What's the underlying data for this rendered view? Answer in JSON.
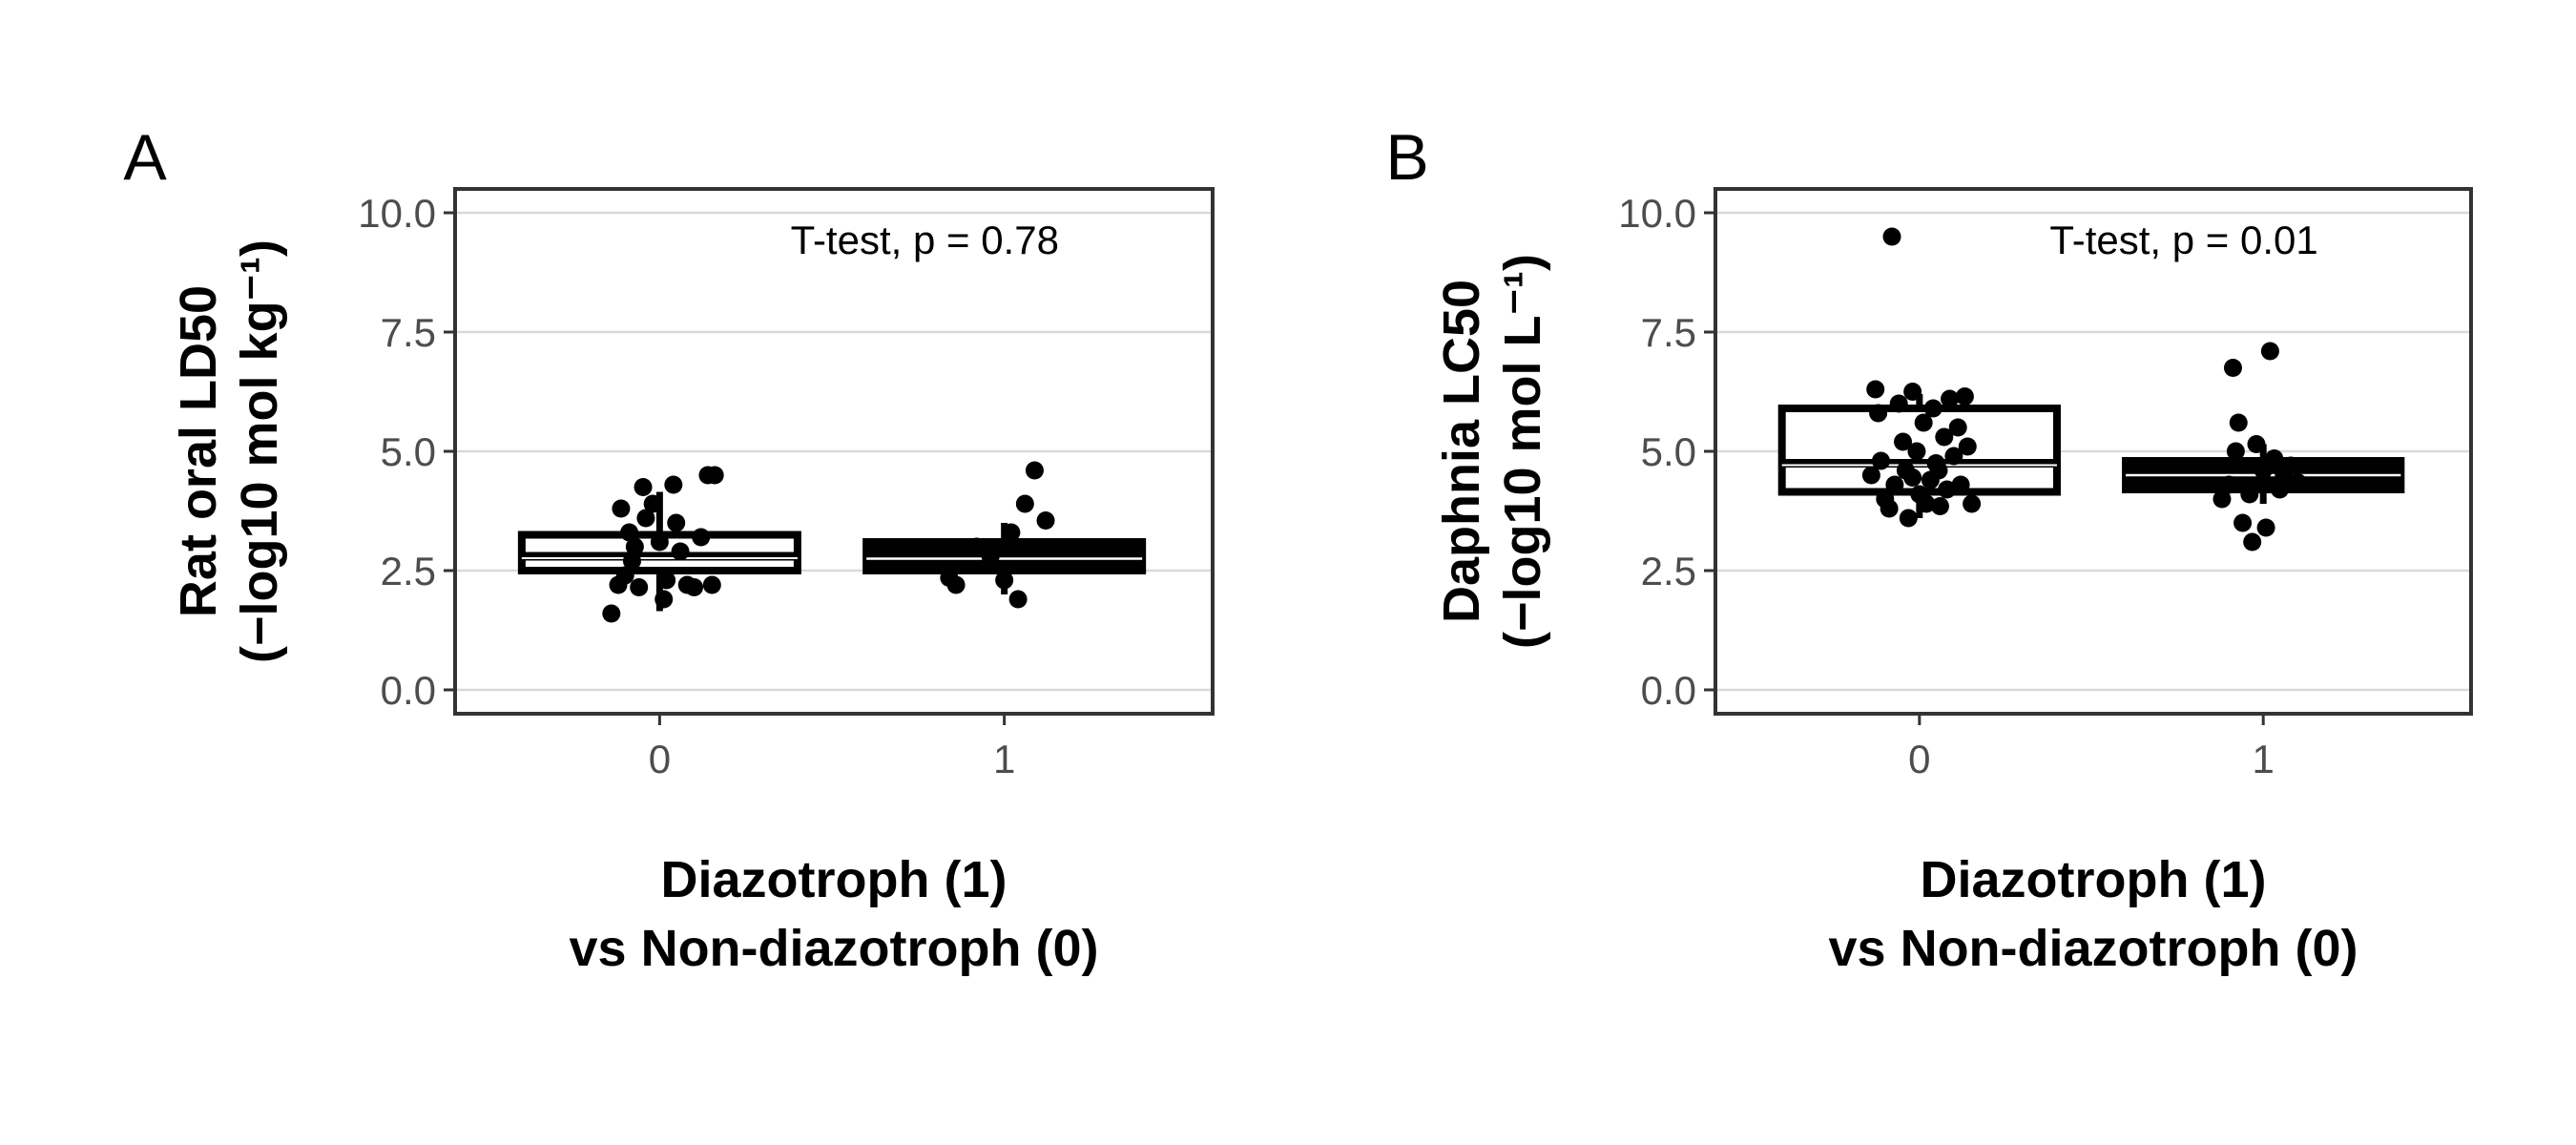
{
  "chart_data": [
    {
      "type": "box",
      "panel_label": "A",
      "ylabel_lines": [
        "Rat oral LD50",
        "(−log10 mol kg⁻¹)"
      ],
      "xlabel_lines": [
        "Diazotroph (1)",
        "vs Non-diazotroph (0)"
      ],
      "categories": [
        "0",
        "1"
      ],
      "ylim": [
        -0.5,
        10.5
      ],
      "yticks": [
        0.0,
        2.5,
        5.0,
        7.5,
        10.0
      ],
      "ytick_labels": [
        "0.0",
        "2.5",
        "5.0",
        "7.5",
        "10.0"
      ],
      "annotation": "T-test, p = 0.78",
      "grid": "horizontal major",
      "boxes": [
        {
          "category": "0",
          "q1": 2.5,
          "median": 2.8,
          "q3": 3.25,
          "whisker_low": 1.65,
          "whisker_high": 4.15,
          "filled": false
        },
        {
          "category": "1",
          "q1": 2.5,
          "median": 2.75,
          "q3": 3.1,
          "whisker_low": 2.0,
          "whisker_high": 3.5,
          "filled": true
        }
      ],
      "points": [
        {
          "x": 0,
          "jitter": -0.35,
          "y": 1.6
        },
        {
          "x": 0,
          "jitter": -0.3,
          "y": 2.2
        },
        {
          "x": 0,
          "jitter": -0.25,
          "y": 2.4
        },
        {
          "x": 0,
          "jitter": -0.2,
          "y": 2.7
        },
        {
          "x": 0,
          "jitter": -0.15,
          "y": 2.15
        },
        {
          "x": 0,
          "jitter": -0.28,
          "y": 3.8
        },
        {
          "x": 0,
          "jitter": -0.22,
          "y": 3.3
        },
        {
          "x": 0,
          "jitter": -0.1,
          "y": 3.6
        },
        {
          "x": 0,
          "jitter": -0.05,
          "y": 3.9
        },
        {
          "x": 0,
          "jitter": 0.0,
          "y": 3.1
        },
        {
          "x": 0,
          "jitter": 0.05,
          "y": 2.3
        },
        {
          "x": 0,
          "jitter": 0.1,
          "y": 4.3
        },
        {
          "x": 0,
          "jitter": -0.12,
          "y": 4.25
        },
        {
          "x": 0,
          "jitter": 0.12,
          "y": 3.5
        },
        {
          "x": 0,
          "jitter": 0.15,
          "y": 2.9
        },
        {
          "x": 0,
          "jitter": 0.2,
          "y": 2.2
        },
        {
          "x": 0,
          "jitter": 0.25,
          "y": 2.15
        },
        {
          "x": 0,
          "jitter": 0.3,
          "y": 3.2
        },
        {
          "x": 0,
          "jitter": 0.35,
          "y": 4.5
        },
        {
          "x": 0,
          "jitter": 0.4,
          "y": 4.5
        },
        {
          "x": 0,
          "jitter": 0.38,
          "y": 2.2
        },
        {
          "x": 0,
          "jitter": 0.03,
          "y": 1.9
        },
        {
          "x": 0,
          "jitter": -0.18,
          "y": 3.0
        },
        {
          "x": 1,
          "jitter": -0.4,
          "y": 2.35
        },
        {
          "x": 1,
          "jitter": -0.35,
          "y": 2.2
        },
        {
          "x": 1,
          "jitter": -0.2,
          "y": 3.0
        },
        {
          "x": 1,
          "jitter": -0.1,
          "y": 2.8
        },
        {
          "x": 1,
          "jitter": 0.0,
          "y": 2.3
        },
        {
          "x": 1,
          "jitter": 0.1,
          "y": 1.9
        },
        {
          "x": 1,
          "jitter": 0.15,
          "y": 3.9
        },
        {
          "x": 1,
          "jitter": 0.22,
          "y": 4.6
        },
        {
          "x": 1,
          "jitter": 0.3,
          "y": 3.55
        },
        {
          "x": 1,
          "jitter": 0.05,
          "y": 3.3
        }
      ]
    },
    {
      "type": "box",
      "panel_label": "B",
      "ylabel_lines": [
        "Daphnia LC50",
        "(−log10 mol L⁻¹)"
      ],
      "xlabel_lines": [
        "Diazotroph (1)",
        "vs Non-diazotroph (0)"
      ],
      "categories": [
        "0",
        "1"
      ],
      "ylim": [
        -0.5,
        10.5
      ],
      "yticks": [
        0.0,
        2.5,
        5.0,
        7.5,
        10.0
      ],
      "ytick_labels": [
        "0.0",
        "2.5",
        "5.0",
        "7.5",
        "10.0"
      ],
      "annotation": "T-test, p = 0.01",
      "grid": "horizontal major",
      "boxes": [
        {
          "category": "0",
          "q1": 4.15,
          "median": 4.75,
          "q3": 5.9,
          "whisker_low": 3.6,
          "whisker_high": 6.2,
          "filled": false
        },
        {
          "category": "1",
          "q1": 4.2,
          "median": 4.5,
          "q3": 4.8,
          "whisker_low": 3.9,
          "whisker_high": 5.15,
          "filled": true
        }
      ],
      "points": [
        {
          "x": 0,
          "jitter": -0.2,
          "y": 9.5
        },
        {
          "x": 0,
          "jitter": -0.35,
          "y": 4.5
        },
        {
          "x": 0,
          "jitter": -0.32,
          "y": 6.3
        },
        {
          "x": 0,
          "jitter": -0.3,
          "y": 5.8
        },
        {
          "x": 0,
          "jitter": -0.28,
          "y": 4.8
        },
        {
          "x": 0,
          "jitter": -0.25,
          "y": 4.0
        },
        {
          "x": 0,
          "jitter": -0.22,
          "y": 3.8
        },
        {
          "x": 0,
          "jitter": -0.18,
          "y": 4.3
        },
        {
          "x": 0,
          "jitter": -0.15,
          "y": 6.0
        },
        {
          "x": 0,
          "jitter": -0.12,
          "y": 5.2
        },
        {
          "x": 0,
          "jitter": -0.1,
          "y": 4.6
        },
        {
          "x": 0,
          "jitter": -0.08,
          "y": 3.6
        },
        {
          "x": 0,
          "jitter": -0.05,
          "y": 6.25
        },
        {
          "x": 0,
          "jitter": -0.02,
          "y": 5.0
        },
        {
          "x": 0,
          "jitter": 0.0,
          "y": 4.1
        },
        {
          "x": 0,
          "jitter": 0.03,
          "y": 5.6
        },
        {
          "x": 0,
          "jitter": 0.05,
          "y": 3.9
        },
        {
          "x": 0,
          "jitter": 0.08,
          "y": 4.4
        },
        {
          "x": 0,
          "jitter": 0.1,
          "y": 5.9
        },
        {
          "x": 0,
          "jitter": 0.12,
          "y": 4.75
        },
        {
          "x": 0,
          "jitter": 0.15,
          "y": 3.85
        },
        {
          "x": 0,
          "jitter": 0.18,
          "y": 5.3
        },
        {
          "x": 0,
          "jitter": 0.2,
          "y": 4.2
        },
        {
          "x": 0,
          "jitter": 0.22,
          "y": 6.1
        },
        {
          "x": 0,
          "jitter": 0.25,
          "y": 4.9
        },
        {
          "x": 0,
          "jitter": 0.28,
          "y": 5.5
        },
        {
          "x": 0,
          "jitter": 0.3,
          "y": 4.3
        },
        {
          "x": 0,
          "jitter": 0.33,
          "y": 6.15
        },
        {
          "x": 0,
          "jitter": 0.35,
          "y": 5.1
        },
        {
          "x": 0,
          "jitter": 0.38,
          "y": 3.9
        },
        {
          "x": 0,
          "jitter": -0.05,
          "y": 4.45
        },
        {
          "x": 0,
          "jitter": 0.14,
          "y": 4.6
        },
        {
          "x": 1,
          "jitter": -0.22,
          "y": 6.75
        },
        {
          "x": 1,
          "jitter": 0.05,
          "y": 7.1
        },
        {
          "x": 1,
          "jitter": -0.3,
          "y": 4.0
        },
        {
          "x": 1,
          "jitter": -0.25,
          "y": 4.3
        },
        {
          "x": 1,
          "jitter": -0.2,
          "y": 5.0
        },
        {
          "x": 1,
          "jitter": -0.18,
          "y": 5.6
        },
        {
          "x": 1,
          "jitter": -0.15,
          "y": 3.5
        },
        {
          "x": 1,
          "jitter": -0.1,
          "y": 4.1
        },
        {
          "x": 1,
          "jitter": -0.05,
          "y": 5.15
        },
        {
          "x": 1,
          "jitter": 0.0,
          "y": 4.6
        },
        {
          "x": 1,
          "jitter": 0.02,
          "y": 3.4
        },
        {
          "x": 1,
          "jitter": -0.08,
          "y": 3.1
        },
        {
          "x": 1,
          "jitter": 0.08,
          "y": 4.85
        },
        {
          "x": 1,
          "jitter": 0.12,
          "y": 4.2
        },
        {
          "x": 1,
          "jitter": 0.15,
          "y": 4.5
        },
        {
          "x": 1,
          "jitter": 0.2,
          "y": 4.7
        },
        {
          "x": 1,
          "jitter": 0.25,
          "y": 4.35
        }
      ]
    }
  ]
}
